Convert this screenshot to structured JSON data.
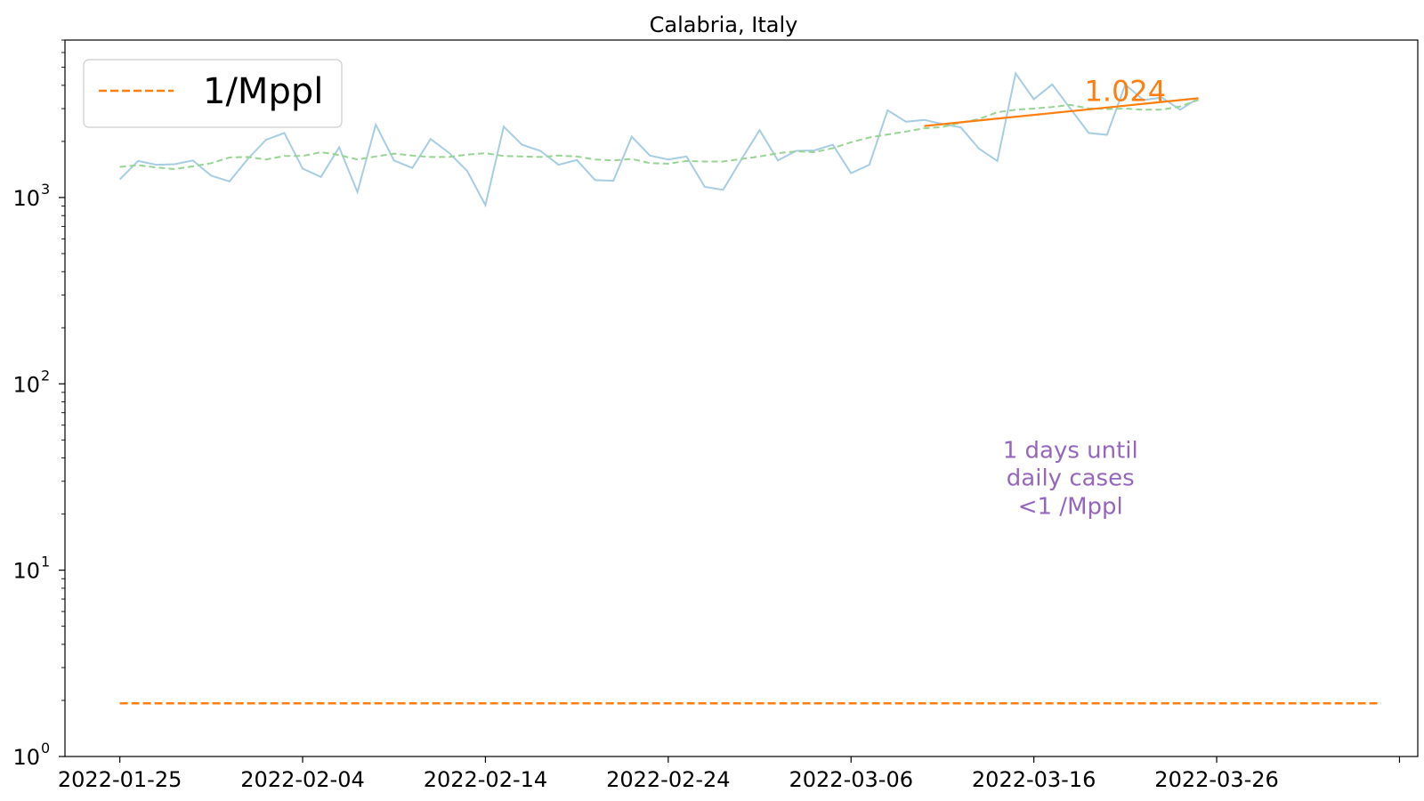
{
  "chart_data": {
    "type": "line",
    "title": "Calabria, Italy",
    "xlabel": "",
    "ylabel": "",
    "yscale": "log",
    "ylim": [
      1,
      7000
    ],
    "xlim": [
      "2022-01-22",
      "2022-04-06"
    ],
    "x_ticks": [
      "2022-01-25",
      "2022-02-04",
      "2022-02-14",
      "2022-02-24",
      "2022-03-06",
      "2022-03-16",
      "2022-03-26",
      ""
    ],
    "y_ticks": [
      {
        "value": 1,
        "base": "10",
        "exp": "0"
      },
      {
        "value": 10,
        "base": "10",
        "exp": "1"
      },
      {
        "value": 100,
        "base": "10",
        "exp": "2"
      },
      {
        "value": 1000,
        "base": "10",
        "exp": "3"
      }
    ],
    "legend": {
      "location": "upper left",
      "entries": [
        {
          "label": "1/Mppl",
          "color": "#ff7f0e",
          "style": "dashed"
        }
      ]
    },
    "grid": false,
    "series": [
      {
        "role": "daily",
        "color": "#a6cde2",
        "style": "solid",
        "x": [
          "2022-01-25",
          "2022-01-26",
          "2022-01-27",
          "2022-01-28",
          "2022-01-29",
          "2022-01-30",
          "2022-01-31",
          "2022-02-01",
          "2022-02-02",
          "2022-02-03",
          "2022-02-04",
          "2022-02-05",
          "2022-02-06",
          "2022-02-07",
          "2022-02-08",
          "2022-02-09",
          "2022-02-10",
          "2022-02-11",
          "2022-02-12",
          "2022-02-13",
          "2022-02-14",
          "2022-02-15",
          "2022-02-16",
          "2022-02-17",
          "2022-02-18",
          "2022-02-19",
          "2022-02-20",
          "2022-02-21",
          "2022-02-22",
          "2022-02-23",
          "2022-02-24",
          "2022-02-25",
          "2022-02-26",
          "2022-02-27",
          "2022-02-28",
          "2022-03-01",
          "2022-03-02",
          "2022-03-03",
          "2022-03-04",
          "2022-03-05",
          "2022-03-06",
          "2022-03-07",
          "2022-03-08",
          "2022-03-09",
          "2022-03-10",
          "2022-03-11",
          "2022-03-12",
          "2022-03-13",
          "2022-03-14",
          "2022-03-15",
          "2022-03-16",
          "2022-03-17",
          "2022-03-18",
          "2022-03-19",
          "2022-03-20",
          "2022-03-21",
          "2022-03-22",
          "2022-03-23",
          "2022-03-24",
          "2022-03-25"
        ],
        "values": [
          1250,
          1570,
          1500,
          1510,
          1580,
          1310,
          1220,
          1610,
          2040,
          2220,
          1430,
          1290,
          1860,
          1070,
          2460,
          1580,
          1440,
          2060,
          1740,
          1390,
          910,
          2400,
          1920,
          1780,
          1500,
          1590,
          1240,
          1230,
          2120,
          1680,
          1600,
          1660,
          1140,
          1100,
          1600,
          2300,
          1580,
          1780,
          1790,
          1920,
          1350,
          1500,
          2940,
          2550,
          2610,
          2480,
          2380,
          1830,
          1570,
          4640,
          3370,
          4050,
          3000,
          2220,
          2170,
          4040,
          3330,
          3440,
          2960,
          3420
        ]
      },
      {
        "role": "7-day average",
        "color": "#98d494",
        "style": "dashed",
        "x": [
          "2022-01-25",
          "2022-01-26",
          "2022-01-27",
          "2022-01-28",
          "2022-01-29",
          "2022-01-30",
          "2022-01-31",
          "2022-02-01",
          "2022-02-02",
          "2022-02-03",
          "2022-02-04",
          "2022-02-05",
          "2022-02-06",
          "2022-02-07",
          "2022-02-08",
          "2022-02-09",
          "2022-02-10",
          "2022-02-11",
          "2022-02-12",
          "2022-02-13",
          "2022-02-14",
          "2022-02-15",
          "2022-02-16",
          "2022-02-17",
          "2022-02-18",
          "2022-02-19",
          "2022-02-20",
          "2022-02-21",
          "2022-02-22",
          "2022-02-23",
          "2022-02-24",
          "2022-02-25",
          "2022-02-26",
          "2022-02-27",
          "2022-02-28",
          "2022-03-01",
          "2022-03-02",
          "2022-03-03",
          "2022-03-04",
          "2022-03-05",
          "2022-03-06",
          "2022-03-07",
          "2022-03-08",
          "2022-03-09",
          "2022-03-10",
          "2022-03-11",
          "2022-03-12",
          "2022-03-13",
          "2022-03-14",
          "2022-03-15",
          "2022-03-16",
          "2022-03-17",
          "2022-03-18",
          "2022-03-19",
          "2022-03-20",
          "2022-03-21",
          "2022-03-22",
          "2022-03-23",
          "2022-03-24",
          "2022-03-25"
        ],
        "values": [
          1460,
          1490,
          1450,
          1420,
          1470,
          1530,
          1640,
          1650,
          1600,
          1670,
          1670,
          1750,
          1690,
          1600,
          1660,
          1720,
          1680,
          1650,
          1650,
          1700,
          1730,
          1670,
          1660,
          1650,
          1680,
          1660,
          1600,
          1580,
          1610,
          1530,
          1520,
          1570,
          1560,
          1560,
          1610,
          1660,
          1730,
          1770,
          1750,
          1840,
          1980,
          2100,
          2180,
          2260,
          2350,
          2390,
          2520,
          2640,
          2870,
          2960,
          3000,
          3060,
          3140,
          3010,
          2980,
          3000,
          2960,
          2960,
          3080,
          3340
        ]
      },
      {
        "role": "trend",
        "color": "#ff7f0e",
        "style": "solid",
        "x": [
          "2022-03-10",
          "2022-03-25"
        ],
        "values": [
          2420,
          3410
        ]
      },
      {
        "role": "1/Mppl",
        "color": "#ff7f0e",
        "style": "dashed",
        "x": [
          "2022-01-25",
          "2022-04-04"
        ],
        "values": [
          1.93,
          1.93
        ]
      }
    ],
    "annotations": [
      {
        "text": "1.024",
        "color": "#ff7f0e",
        "x": "2022-03-21",
        "y": 3300
      },
      {
        "text": "1 days until",
        "color": "#9467bd",
        "x": "2022-03-18",
        "y": 40
      },
      {
        "text": "daily cases",
        "color": "#9467bd",
        "x": "2022-03-18",
        "y": 28.5
      },
      {
        "text": "<1 /Mppl",
        "color": "#9467bd",
        "x": "2022-03-18",
        "y": 20
      }
    ]
  }
}
